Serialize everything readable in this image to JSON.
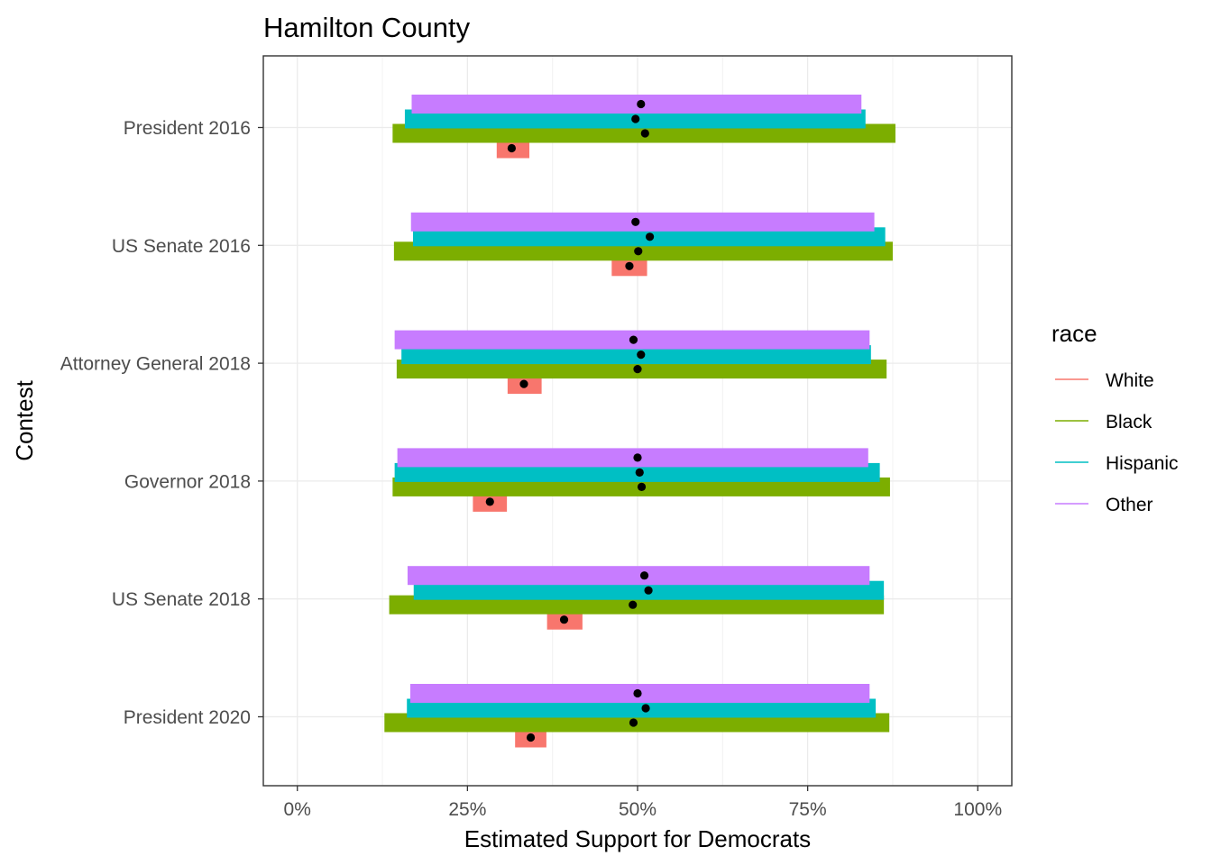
{
  "chart_data": {
    "type": "bar",
    "title": "Hamilton County",
    "xlabel": "Estimated Support for Democrats",
    "ylabel": "Contest",
    "xlim": [
      -0.05,
      1.05
    ],
    "x_ticks": [
      0,
      0.25,
      0.5,
      0.75,
      1.0
    ],
    "x_tick_labels": [
      "0%",
      "25%",
      "50%",
      "75%",
      "100%"
    ],
    "grid": true,
    "legend_position": "right",
    "legend_title": "race",
    "categories": [
      "President 2016",
      "US Senate 2016",
      "Attorney General 2018",
      "Governor 2018",
      "US Senate 2018",
      "President 2020"
    ],
    "series": [
      {
        "name": "White",
        "color": "#F8766D",
        "low": [
          0.293,
          0.462,
          0.309,
          0.258,
          0.367,
          0.32
        ],
        "high": [
          0.341,
          0.514,
          0.359,
          0.308,
          0.419,
          0.366
        ],
        "point": [
          0.315,
          0.488,
          0.333,
          0.283,
          0.392,
          0.343
        ]
      },
      {
        "name": "Black",
        "color": "#7CAE00",
        "low": [
          0.14,
          0.142,
          0.146,
          0.14,
          0.135,
          0.128
        ],
        "high": [
          0.879,
          0.875,
          0.866,
          0.871,
          0.862,
          0.87
        ],
        "point": [
          0.511,
          0.501,
          0.5,
          0.506,
          0.493,
          0.494
        ]
      },
      {
        "name": "Hispanic",
        "color": "#00BFC4",
        "low": [
          0.158,
          0.17,
          0.153,
          0.143,
          0.171,
          0.161
        ],
        "high": [
          0.835,
          0.864,
          0.843,
          0.856,
          0.862,
          0.85
        ],
        "point": [
          0.497,
          0.518,
          0.505,
          0.503,
          0.516,
          0.512
        ]
      },
      {
        "name": "Other",
        "color": "#C77CFF",
        "low": [
          0.168,
          0.167,
          0.143,
          0.147,
          0.162,
          0.166
        ],
        "high": [
          0.829,
          0.848,
          0.841,
          0.839,
          0.841,
          0.841
        ],
        "point": [
          0.505,
          0.497,
          0.494,
          0.5,
          0.51,
          0.5
        ]
      }
    ]
  }
}
